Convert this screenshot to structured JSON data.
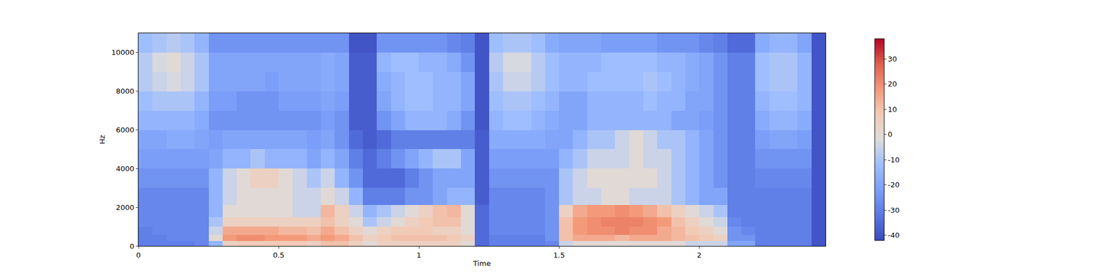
{
  "chart_data": {
    "type": "heatmap",
    "x_label": "Time",
    "y_label": "Hz",
    "x": [
      0.025,
      0.075,
      0.125,
      0.175,
      0.225,
      0.275,
      0.325,
      0.375,
      0.425,
      0.475,
      0.525,
      0.575,
      0.625,
      0.675,
      0.725,
      0.775,
      0.825,
      0.875,
      0.925,
      0.975,
      1.025,
      1.075,
      1.125,
      1.175,
      1.225,
      1.275,
      1.325,
      1.375,
      1.425,
      1.475,
      1.525,
      1.575,
      1.625,
      1.675,
      1.725,
      1.775,
      1.825,
      1.875,
      1.925,
      1.975,
      2.025,
      2.075,
      2.125,
      2.175,
      2.225,
      2.275,
      2.325,
      2.375,
      2.425
    ],
    "y": [
      125,
      375,
      750,
      1250,
      1750,
      2500,
      3500,
      4500,
      5500,
      6500,
      7500,
      8500,
      9500,
      10500
    ],
    "cells": [
      [
        -30,
        -30,
        -30,
        -30,
        -28,
        -15,
        5,
        8,
        8,
        8,
        8,
        8,
        5,
        10,
        10,
        5,
        0,
        5,
        5,
        5,
        5,
        5,
        5,
        0,
        -35,
        -30,
        -30,
        -30,
        -30,
        -28,
        -5,
        0,
        0,
        0,
        0,
        0,
        0,
        0,
        0,
        -5,
        -5,
        -5,
        -20,
        -20,
        -30,
        -30,
        -30,
        -30,
        -40
      ],
      [
        -30,
        -30,
        -28,
        -28,
        -28,
        0,
        18,
        20,
        20,
        18,
        18,
        18,
        15,
        18,
        15,
        10,
        5,
        8,
        10,
        10,
        10,
        10,
        8,
        5,
        -35,
        -30,
        -30,
        -30,
        -30,
        -25,
        10,
        15,
        15,
        15,
        12,
        15,
        15,
        15,
        12,
        10,
        8,
        5,
        -25,
        -25,
        -30,
        -30,
        -30,
        -30,
        -40
      ],
      [
        -30,
        -28,
        -28,
        -28,
        -28,
        -5,
        15,
        15,
        15,
        15,
        12,
        12,
        10,
        15,
        10,
        5,
        0,
        5,
        8,
        8,
        8,
        5,
        5,
        0,
        -35,
        -28,
        -28,
        -28,
        -28,
        -25,
        10,
        18,
        20,
        20,
        22,
        20,
        20,
        15,
        12,
        8,
        5,
        0,
        -25,
        -28,
        -30,
        -30,
        -30,
        -30,
        -40
      ],
      [
        -28,
        -28,
        -28,
        -28,
        -28,
        -10,
        5,
        5,
        5,
        5,
        5,
        5,
        5,
        10,
        5,
        0,
        -10,
        -5,
        0,
        5,
        8,
        10,
        10,
        0,
        -35,
        -28,
        -28,
        -28,
        -28,
        -25,
        10,
        18,
        20,
        22,
        22,
        22,
        20,
        18,
        10,
        5,
        0,
        -5,
        -28,
        -30,
        -30,
        -30,
        -30,
        -30,
        -40
      ],
      [
        -28,
        -28,
        -28,
        -28,
        -28,
        -15,
        0,
        0,
        0,
        0,
        0,
        -5,
        -5,
        12,
        5,
        -5,
        -15,
        -10,
        -5,
        0,
        5,
        10,
        12,
        0,
        -35,
        -28,
        -28,
        -28,
        -28,
        -25,
        5,
        15,
        18,
        18,
        20,
        18,
        15,
        10,
        5,
        0,
        -5,
        -10,
        -30,
        -30,
        -30,
        -30,
        -30,
        -30,
        -40
      ],
      [
        -28,
        -28,
        -28,
        -28,
        -28,
        -15,
        -5,
        0,
        0,
        0,
        0,
        -5,
        -5,
        0,
        -5,
        -15,
        -30,
        -30,
        -30,
        -25,
        -25,
        -20,
        -15,
        -15,
        -38,
        -28,
        -28,
        -28,
        -28,
        -25,
        -10,
        -5,
        -5,
        0,
        0,
        -5,
        -5,
        -5,
        -10,
        -15,
        -20,
        -20,
        -30,
        -30,
        -30,
        -30,
        -30,
        -30,
        -40
      ],
      [
        -25,
        -25,
        -25,
        -25,
        -25,
        -15,
        -5,
        0,
        5,
        5,
        0,
        -5,
        -10,
        -5,
        -15,
        -25,
        -35,
        -35,
        -35,
        -30,
        -25,
        -20,
        -20,
        -20,
        -38,
        -25,
        -25,
        -25,
        -25,
        -25,
        -10,
        -5,
        0,
        0,
        0,
        0,
        0,
        -5,
        -10,
        -15,
        -20,
        -25,
        -30,
        -30,
        -28,
        -28,
        -28,
        -28,
        -40
      ],
      [
        -22,
        -22,
        -22,
        -22,
        -22,
        -20,
        -15,
        -15,
        -10,
        -15,
        -15,
        -15,
        -20,
        -15,
        -20,
        -30,
        -35,
        -30,
        -25,
        -20,
        -15,
        -10,
        -10,
        -20,
        -38,
        -22,
        -22,
        -22,
        -22,
        -22,
        -15,
        -10,
        -5,
        -5,
        -5,
        0,
        -5,
        -5,
        -10,
        -15,
        -20,
        -25,
        -30,
        -30,
        -25,
        -25,
        -25,
        -25,
        -40
      ],
      [
        -20,
        -20,
        -18,
        -18,
        -20,
        -22,
        -20,
        -20,
        -20,
        -20,
        -20,
        -20,
        -22,
        -20,
        -25,
        -35,
        -38,
        -35,
        -30,
        -30,
        -30,
        -30,
        -30,
        -30,
        -38,
        -18,
        -18,
        -18,
        -18,
        -20,
        -20,
        -15,
        -10,
        -10,
        -5,
        0,
        -5,
        -10,
        -10,
        -15,
        -20,
        -25,
        -30,
        -30,
        -22,
        -20,
        -20,
        -22,
        -40
      ],
      [
        -15,
        -15,
        -15,
        -15,
        -18,
        -25,
        -25,
        -25,
        -25,
        -25,
        -25,
        -25,
        -25,
        -22,
        -25,
        -38,
        -38,
        -25,
        -20,
        -15,
        -15,
        -15,
        -18,
        -25,
        -40,
        -15,
        -12,
        -12,
        -15,
        -18,
        -20,
        -20,
        -15,
        -15,
        -15,
        -15,
        -15,
        -15,
        -20,
        -20,
        -22,
        -25,
        -30,
        -30,
        -18,
        -15,
        -15,
        -18,
        -40
      ],
      [
        -12,
        -10,
        -10,
        -10,
        -15,
        -22,
        -22,
        -25,
        -25,
        -25,
        -22,
        -22,
        -22,
        -20,
        -22,
        -38,
        -38,
        -20,
        -15,
        -12,
        -12,
        -15,
        -15,
        -20,
        -40,
        -12,
        -10,
        -10,
        -12,
        -15,
        -20,
        -20,
        -15,
        -15,
        -15,
        -15,
        -12,
        -15,
        -15,
        -20,
        -20,
        -25,
        -30,
        -30,
        -15,
        -12,
        -12,
        -15,
        -40
      ],
      [
        -8,
        -5,
        -3,
        -5,
        -10,
        -20,
        -20,
        -20,
        -20,
        -22,
        -20,
        -20,
        -20,
        -18,
        -20,
        -38,
        -38,
        -18,
        -15,
        -12,
        -12,
        -15,
        -15,
        -20,
        -40,
        -10,
        -5,
        -5,
        -8,
        -12,
        -15,
        -15,
        -12,
        -12,
        -12,
        -12,
        -10,
        -12,
        -15,
        -18,
        -20,
        -25,
        -30,
        -30,
        -12,
        -10,
        -10,
        -15,
        -40
      ],
      [
        -8,
        -3,
        0,
        -5,
        -10,
        -20,
        -20,
        -20,
        -20,
        -20,
        -20,
        -20,
        -20,
        -18,
        -20,
        -38,
        -38,
        -15,
        -12,
        -12,
        -15,
        -15,
        -18,
        -25,
        -40,
        -8,
        -3,
        -3,
        -8,
        -12,
        -15,
        -15,
        -15,
        -12,
        -12,
        -12,
        -12,
        -15,
        -15,
        -18,
        -20,
        -25,
        -30,
        -30,
        -12,
        -10,
        -10,
        -15,
        -40
      ],
      [
        -12,
        -10,
        -8,
        -10,
        -15,
        -25,
        -25,
        -25,
        -25,
        -25,
        -25,
        -25,
        -25,
        -25,
        -25,
        -40,
        -40,
        -25,
        -25,
        -25,
        -25,
        -25,
        -28,
        -30,
        -40,
        -12,
        -10,
        -10,
        -12,
        -18,
        -20,
        -20,
        -20,
        -22,
        -22,
        -22,
        -22,
        -25,
        -25,
        -25,
        -28,
        -30,
        -35,
        -35,
        -18,
        -15,
        -15,
        -20,
        -40
      ]
    ],
    "xlim": [
      0,
      2.45
    ],
    "ylim": [
      0,
      11000
    ],
    "xticks": [
      0,
      0.5,
      1,
      1.5,
      2
    ],
    "yticks": [
      0,
      2000,
      4000,
      6000,
      8000,
      10000
    ],
    "colorbar": {
      "range": [
        -42,
        38
      ],
      "ticks": [
        -40,
        -30,
        -20,
        -10,
        0,
        10,
        20,
        30
      ]
    }
  }
}
